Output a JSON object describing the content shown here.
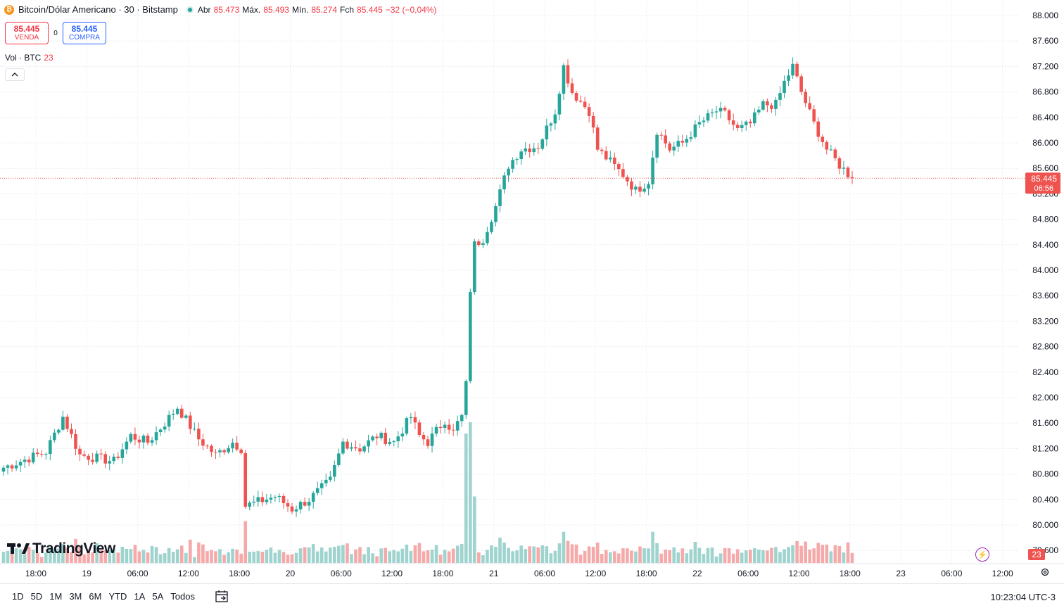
{
  "header": {
    "symbol_title": "Bitcoin/Dólar Americano · 30 · Bitstamp",
    "coin_glyph": "₿",
    "open_label": "Abr",
    "open_value": "85.473",
    "high_label": "Máx.",
    "high_value": "85.493",
    "low_label": "Mín.",
    "low_value": "85.274",
    "close_label": "Fch",
    "close_value": "85.445",
    "change": "−32 (−0,04%)"
  },
  "trade": {
    "sell_price": "85.445",
    "sell_label": "VENDA",
    "spread": "0",
    "buy_price": "85.445",
    "buy_label": "COMPRA"
  },
  "volume_legend": {
    "label": "Vol · BTC",
    "value": "23"
  },
  "logo_text": "TradingView",
  "bottom": {
    "ranges": [
      "1D",
      "5D",
      "1M",
      "3M",
      "6M",
      "YTD",
      "1A",
      "5A",
      "Todos"
    ],
    "clock": "10:23:04 UTC-3"
  },
  "colors": {
    "up": "#26a69a",
    "down": "#ef5350",
    "up_vol": "#9ed3ce",
    "down_vol": "#f5a9a9"
  },
  "chart_data": {
    "type": "candlestick",
    "interval": "30",
    "y_ticks": [
      "88.000",
      "87.600",
      "87.200",
      "86.800",
      "86.400",
      "86.000",
      "85.600",
      "85.200",
      "84.800",
      "84.400",
      "84.000",
      "83.600",
      "83.200",
      "82.800",
      "82.400",
      "82.000",
      "81.600",
      "81.200",
      "80.800",
      "80.400",
      "80.000",
      "79.600"
    ],
    "ylim": [
      79500,
      88050
    ],
    "x_ticks": [
      "18:00",
      "19",
      "06:00",
      "12:00",
      "18:00",
      "20",
      "06:00",
      "12:00",
      "18:00",
      "21",
      "06:00",
      "12:00",
      "18:00",
      "22",
      "06:00",
      "12:00",
      "18:00",
      "23",
      "06:00",
      "12:00"
    ],
    "last_price_label": "85.445",
    "countdown": "06:56",
    "last_volume_label": "23",
    "anchors": [
      [
        0,
        80900
      ],
      [
        10,
        81150
      ],
      [
        14,
        81700
      ],
      [
        18,
        81100
      ],
      [
        22,
        81050
      ],
      [
        26,
        81000
      ],
      [
        30,
        81400
      ],
      [
        34,
        81300
      ],
      [
        38,
        81600
      ],
      [
        41,
        81850
      ],
      [
        46,
        81350
      ],
      [
        50,
        81100
      ],
      [
        54,
        81300
      ],
      [
        56,
        81200
      ],
      [
        57,
        80300
      ],
      [
        64,
        80450
      ],
      [
        68,
        80250
      ],
      [
        72,
        80400
      ],
      [
        77,
        80700
      ],
      [
        80,
        81300
      ],
      [
        84,
        81200
      ],
      [
        88,
        81400
      ],
      [
        92,
        81300
      ],
      [
        96,
        81700
      ],
      [
        98,
        81400
      ],
      [
        100,
        81300
      ],
      [
        104,
        81650
      ],
      [
        106,
        81450
      ],
      [
        107,
        81600
      ],
      [
        108,
        81700
      ],
      [
        109,
        82200
      ],
      [
        110,
        83700
      ],
      [
        111,
        84400
      ],
      [
        113,
        84500
      ],
      [
        116,
        85000
      ],
      [
        119,
        85650
      ],
      [
        122,
        85900
      ],
      [
        126,
        85950
      ],
      [
        130,
        86500
      ],
      [
        132,
        87200
      ],
      [
        134,
        86800
      ],
      [
        138,
        86500
      ],
      [
        140,
        85900
      ],
      [
        143,
        85700
      ],
      [
        146,
        85500
      ],
      [
        149,
        85250
      ],
      [
        152,
        85400
      ],
      [
        154,
        86200
      ],
      [
        157,
        85900
      ],
      [
        160,
        86000
      ],
      [
        164,
        86300
      ],
      [
        168,
        86500
      ],
      [
        170,
        86450
      ],
      [
        173,
        86200
      ],
      [
        176,
        86300
      ],
      [
        179,
        86600
      ],
      [
        182,
        86600
      ],
      [
        184,
        86950
      ],
      [
        186,
        87200
      ],
      [
        188,
        86800
      ],
      [
        191,
        86300
      ],
      [
        194,
        85900
      ],
      [
        197,
        85650
      ],
      [
        200,
        85445
      ]
    ]
  }
}
